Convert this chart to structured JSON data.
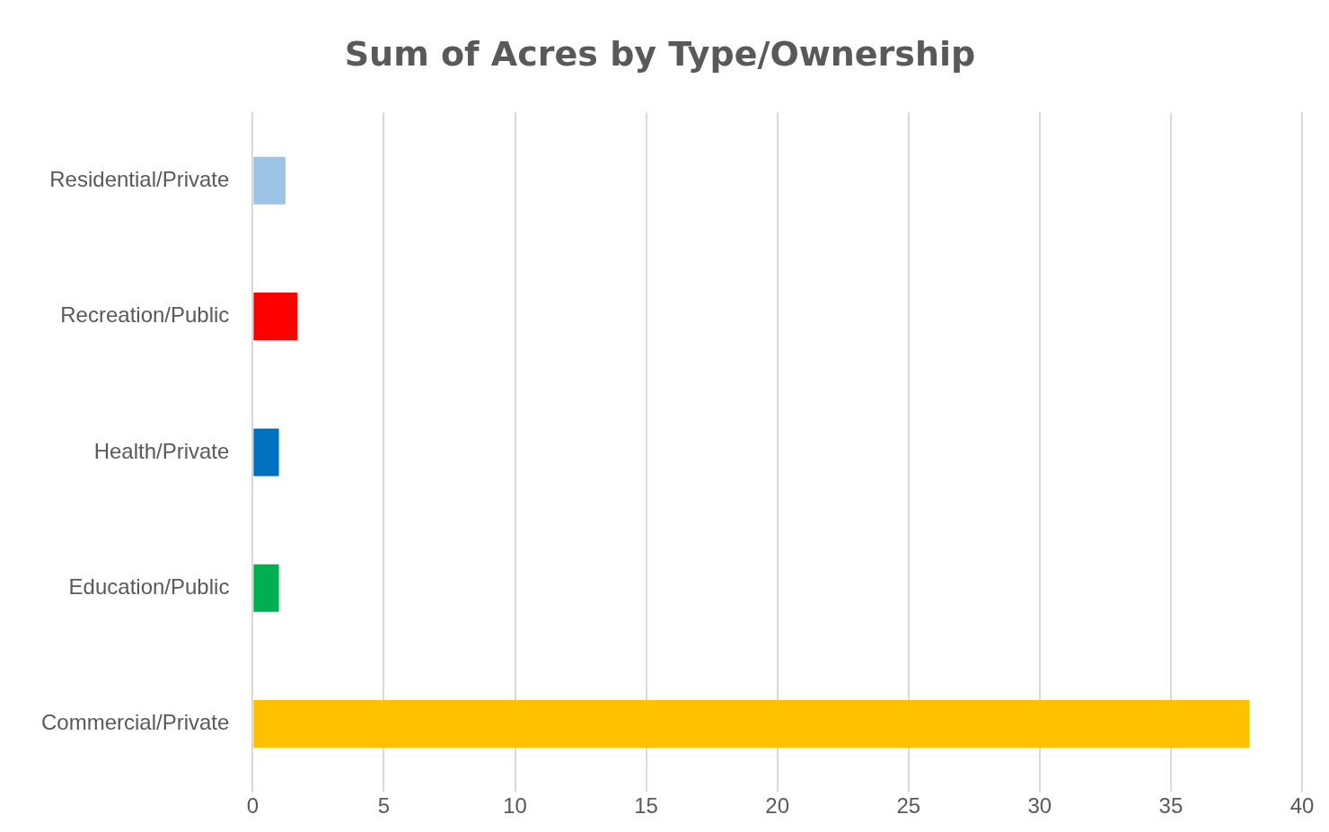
{
  "chart_data": {
    "type": "bar",
    "orientation": "horizontal",
    "title": "Sum of Acres by Type/Ownership",
    "categories": [
      "Residential/Private",
      "Recreation/Public",
      "Health/Private",
      "Education/Public",
      "Commercial/Private"
    ],
    "values": [
      1.25,
      1.7,
      1.0,
      1.0,
      38
    ],
    "colors": [
      "#9dc3e6",
      "#ff0000",
      "#0070c0",
      "#00b050",
      "#ffc000"
    ],
    "xlim": [
      0,
      40
    ],
    "xticks": [
      0,
      5,
      10,
      15,
      20,
      25,
      30,
      35,
      40
    ],
    "grid": "x",
    "legend": false
  }
}
